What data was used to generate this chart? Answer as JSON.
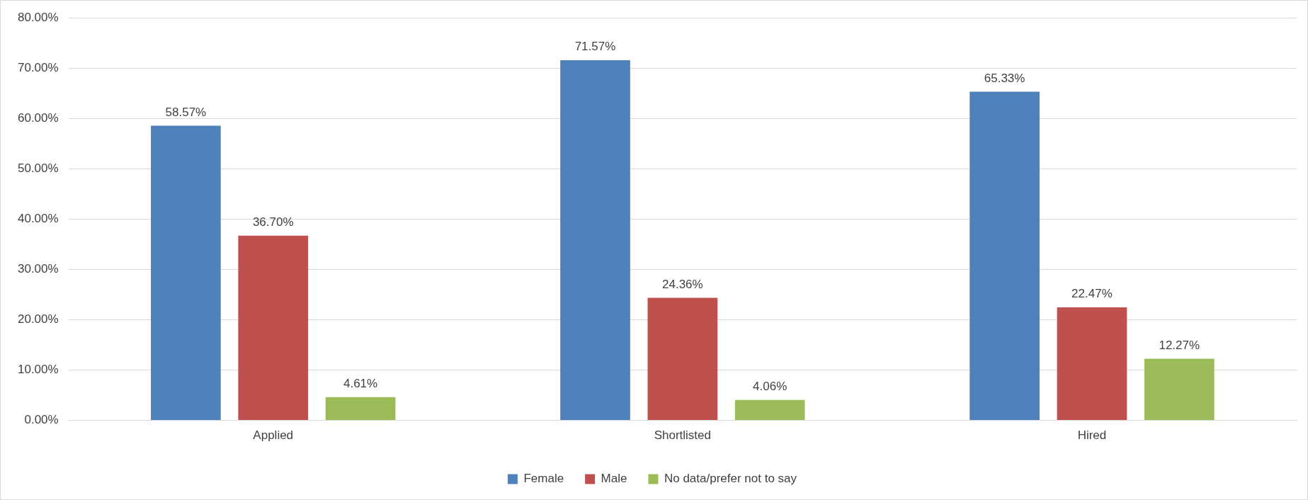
{
  "chart_data": {
    "type": "bar",
    "categories": [
      "Applied",
      "Shortlisted",
      "Hired"
    ],
    "series": [
      {
        "name": "Female",
        "color": "#4f81bd",
        "values": [
          58.57,
          71.57,
          65.33
        ],
        "value_labels": [
          "58.57%",
          "71.57%",
          "65.33%"
        ]
      },
      {
        "name": "Male",
        "color": "#c0504d",
        "values": [
          36.7,
          24.36,
          22.47
        ],
        "value_labels": [
          "36.70%",
          "24.36%",
          "22.47%"
        ]
      },
      {
        "name": "No data/prefer not to say",
        "color": "#9bbb59",
        "values": [
          4.61,
          4.06,
          12.27
        ],
        "value_labels": [
          "4.61%",
          "4.06%",
          "12.27%"
        ]
      }
    ],
    "ylim": [
      0,
      80
    ],
    "yticks": [
      {
        "value": 0,
        "label": "0.00%"
      },
      {
        "value": 10,
        "label": "10.00%"
      },
      {
        "value": 20,
        "label": "20.00%"
      },
      {
        "value": 30,
        "label": "30.00%"
      },
      {
        "value": 40,
        "label": "40.00%"
      },
      {
        "value": 50,
        "label": "50.00%"
      },
      {
        "value": 60,
        "label": "60.00%"
      },
      {
        "value": 70,
        "label": "70.00%"
      },
      {
        "value": 80,
        "label": "80.00%"
      }
    ],
    "grid": "y",
    "legend": "bottom"
  }
}
